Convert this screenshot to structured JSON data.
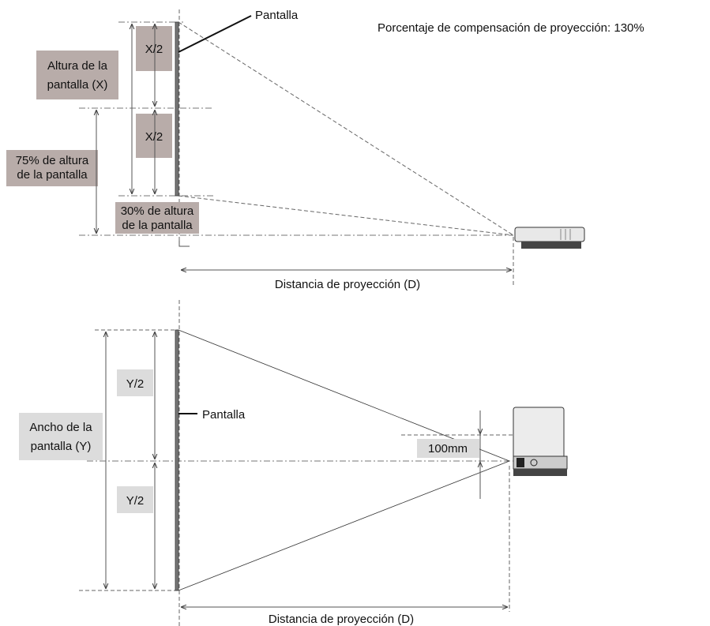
{
  "side_view": {
    "screen_label": "Pantalla",
    "offset_note": "Porcentaje de compensación de proyección: 130%",
    "height_label": [
      "Altura de la",
      "pantalla (X)"
    ],
    "half_labels": [
      "X/2",
      "X/2"
    ],
    "upper_label": [
      "75% de altura",
      "de la pantalla"
    ],
    "lower_label": [
      "30% de altura",
      "de la pantalla"
    ],
    "distance_label": "Distancia de proyección (D)"
  },
  "top_view": {
    "screen_label": "Pantalla",
    "width_label": [
      "Ancho de la",
      "pantalla (Y)"
    ],
    "half_labels": [
      "Y/2",
      "Y/2"
    ],
    "offset_label": "100mm",
    "distance_label": "Distancia de proyección (D)"
  }
}
